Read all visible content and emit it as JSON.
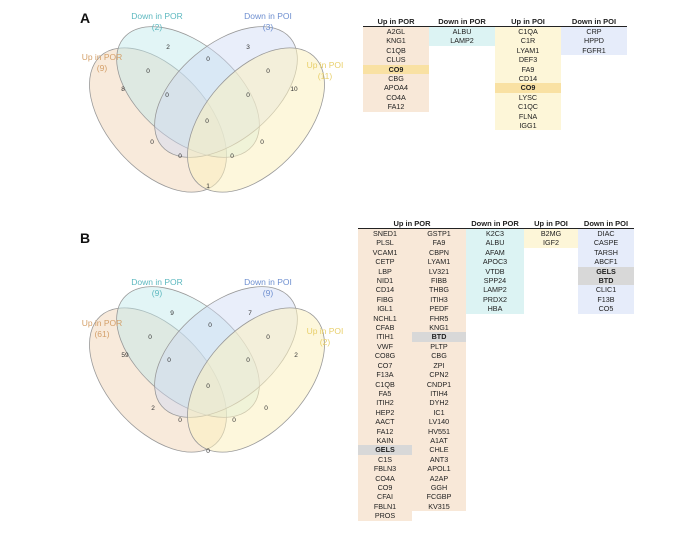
{
  "panelA": {
    "letter": "A",
    "venn_labels": {
      "up_por": [
        "Up in POR",
        "(9)"
      ],
      "down_por": [
        "Down in POR",
        "(2)"
      ],
      "down_poi": [
        "Down in POI",
        "(3)"
      ],
      "up_poi": [
        "Up in POI",
        "(11)"
      ]
    },
    "regions": [
      "8",
      "2",
      "3",
      "10",
      "0",
      "0",
      "0",
      "0",
      "0",
      "0",
      "0",
      "0",
      "0",
      "0",
      "1"
    ],
    "table": {
      "headers": [
        "Up in POR",
        "Down in POR",
        "Up in POI",
        "Down in POI"
      ],
      "up_por": [
        "A2GL",
        "KNG1",
        "C1QB",
        "CLUS",
        "CO9",
        "CBG",
        "APOA4",
        "CO4A",
        "FA12"
      ],
      "down_por": [
        "ALBU",
        "LAMP2"
      ],
      "up_poi": [
        "C1QA",
        "C1R",
        "LYAM1",
        "DEF3",
        "FA9",
        "CD14",
        "CO9",
        "LYSC",
        "C1QC",
        "FLNA",
        "IGG1"
      ],
      "down_poi": [
        "CRP",
        "HPPD",
        "FGFR1"
      ]
    }
  },
  "panelB": {
    "letter": "B",
    "venn_labels": {
      "up_por": [
        "Up in POR",
        "(61)"
      ],
      "down_por": [
        "Down in POR",
        "(9)"
      ],
      "down_poi": [
        "Down in POI",
        "(9)"
      ],
      "up_poi": [
        "Up in POI",
        "(2)"
      ]
    },
    "regions": [
      "59",
      "9",
      "7",
      "2",
      "0",
      "0",
      "0",
      "0",
      "0",
      "2",
      "0",
      "0",
      "0",
      "0",
      "0"
    ],
    "table": {
      "headers": [
        "Up in POR",
        "Down in POR",
        "Up in POI",
        "Down in POI"
      ],
      "up_por_col1": [
        "SNED1",
        "PLSL",
        "VCAM1",
        "CETP",
        "LBP",
        "NID1",
        "CD14",
        "FIBG",
        "IGL1",
        "NCHL1",
        "CFAB",
        "ITIH1",
        "VWF",
        "CO8G",
        "CO7",
        "F13A",
        "C1QB",
        "FA5",
        "ITIH2",
        "HEP2",
        "AACT",
        "FA12",
        "KAIN",
        "GELS",
        "C1S",
        "FBLN3",
        "CO4A",
        "CO9",
        "CFAI",
        "FBLN1",
        "PROS"
      ],
      "up_por_col2": [
        "GSTP1",
        "FA9",
        "CBPN",
        "LYAM1",
        "LV321",
        "FIBB",
        "THBG",
        "ITIH3",
        "PEDF",
        "FHR5",
        "KNG1",
        "BTD",
        "PLTP",
        "CBG",
        "ZPI",
        "CPN2",
        "CNDP1",
        "ITIH4",
        "DYH2",
        "IC1",
        "LV140",
        "HV551",
        "A1AT",
        "CHLE",
        "ANT3",
        "APOL1",
        "A2AP",
        "GGH",
        "FCGBP",
        "KV315"
      ],
      "down_por": [
        "K2C3",
        "ALBU",
        "AFAM",
        "APOC3",
        "VTDB",
        "SPP24",
        "LAMP2",
        "PRDX2",
        "HBA"
      ],
      "up_poi": [
        "B2MG",
        "IGF2"
      ],
      "down_poi": [
        "DIAC",
        "CASPE",
        "TARSH",
        "ABCF1",
        "GELS",
        "BTD",
        "CLIC1",
        "F13B",
        "CO5"
      ]
    }
  }
}
